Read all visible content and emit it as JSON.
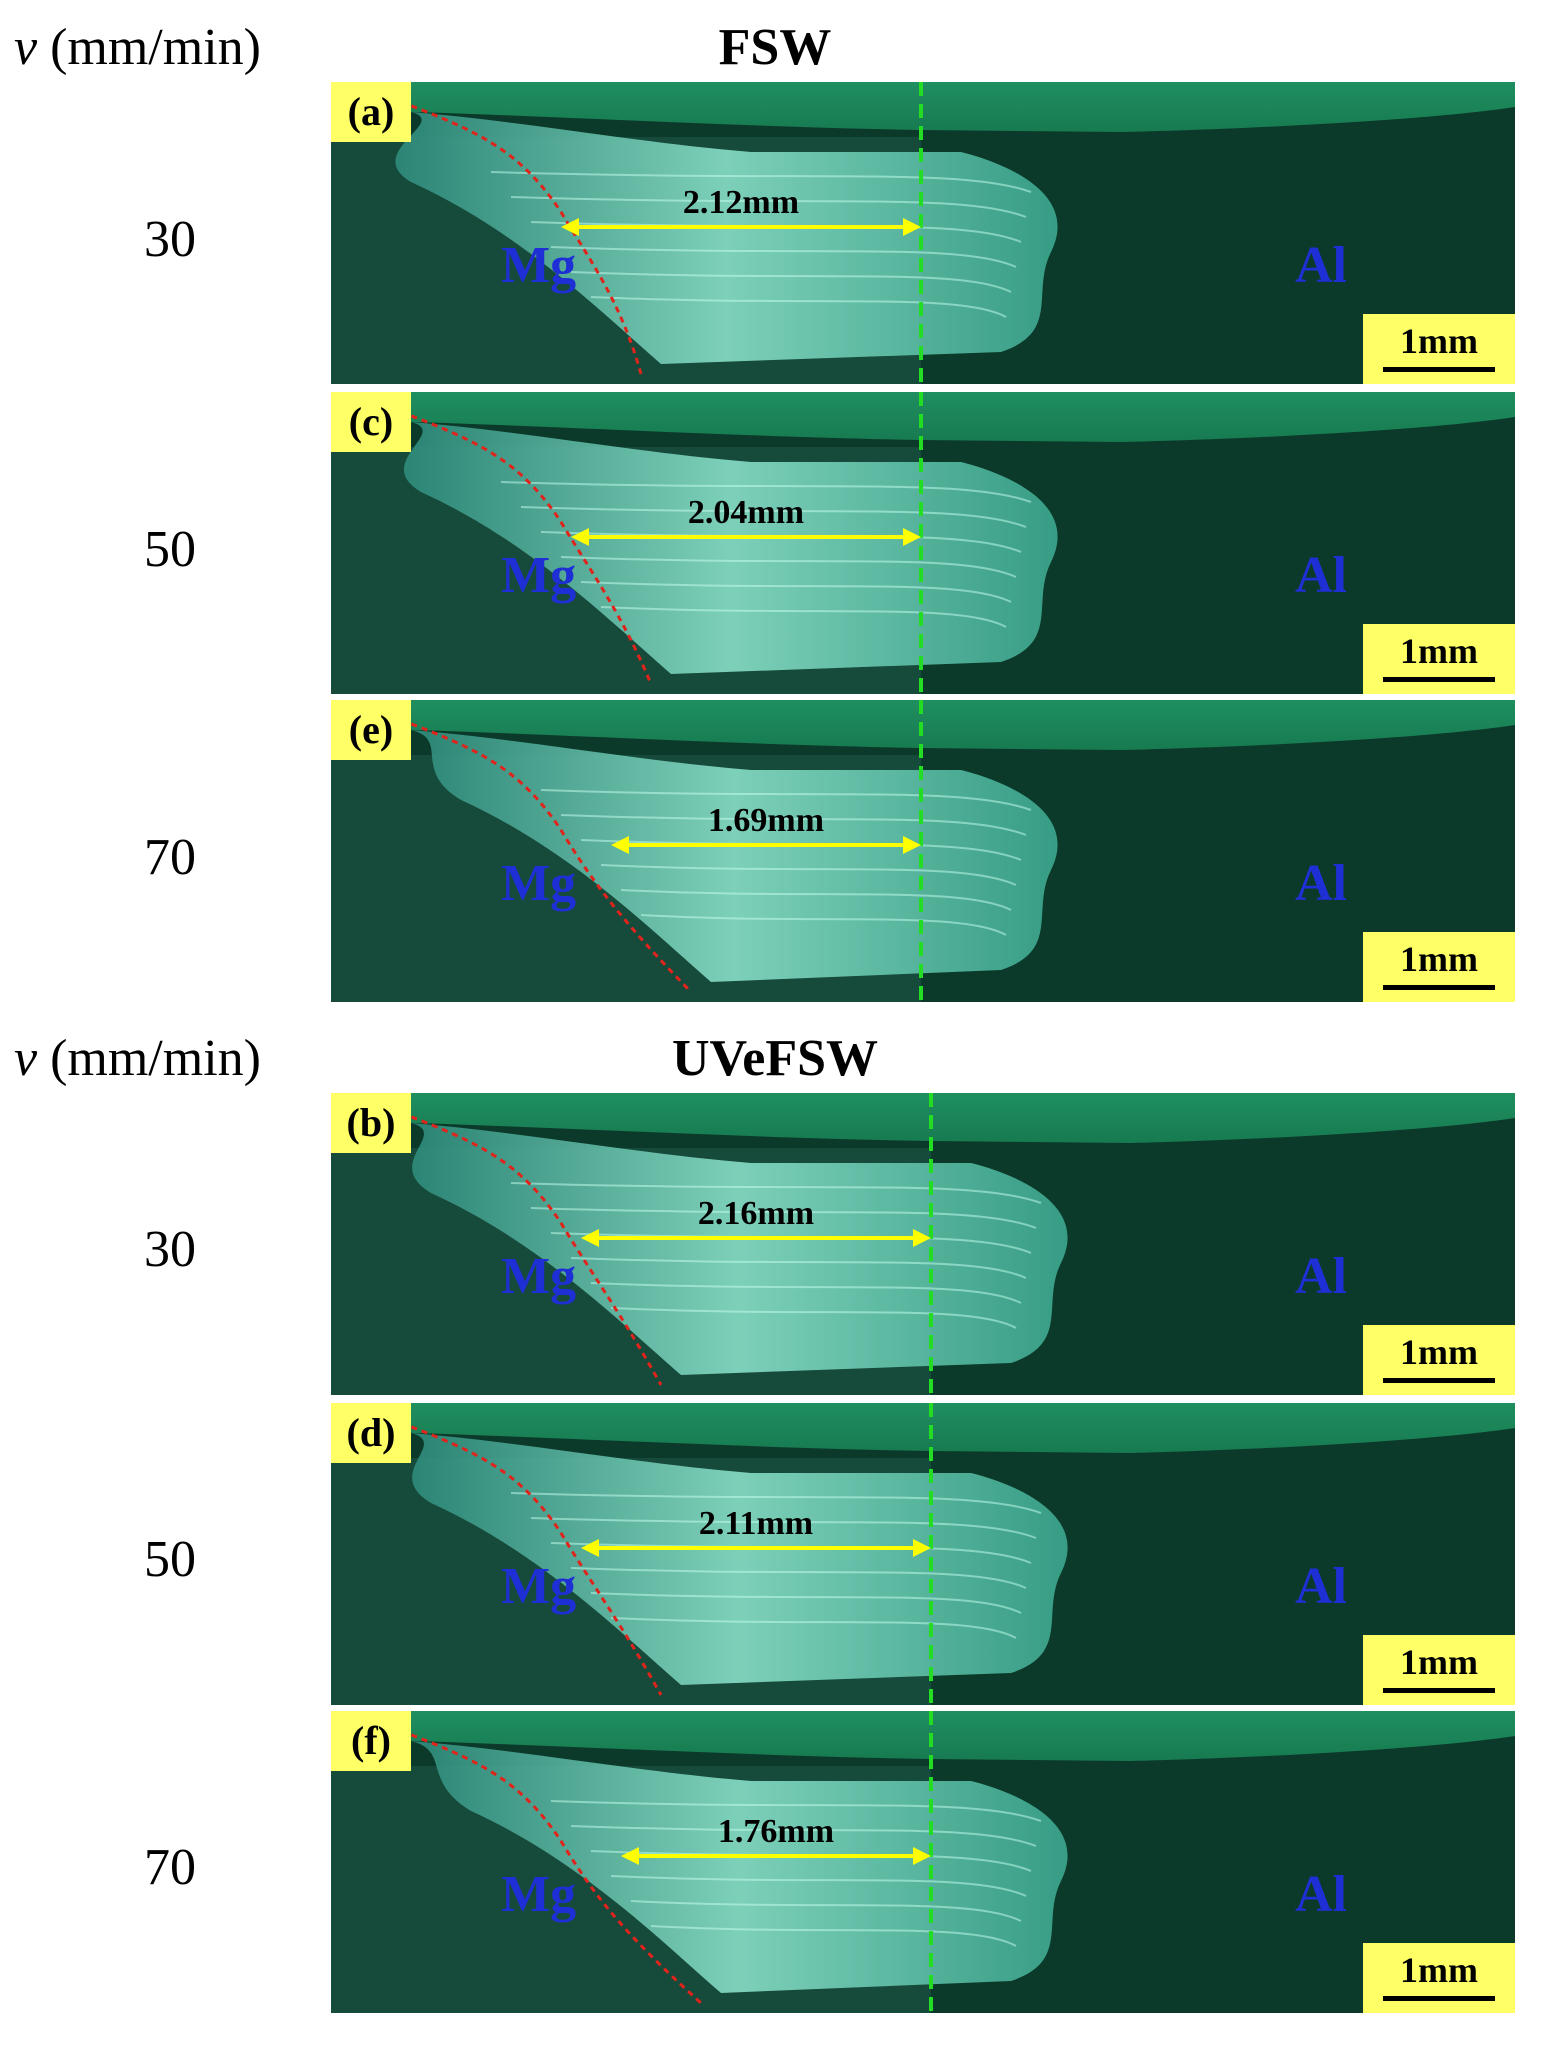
{
  "sections": [
    {
      "axis_label_var": "v",
      "axis_label_unit": "(mm/min)",
      "title": "FSW"
    },
    {
      "axis_label_var": "v",
      "axis_label_unit": "(mm/min)",
      "title": "UVeFSW"
    }
  ],
  "panels": [
    {
      "tag": "(a)",
      "speed": "30",
      "distance": "2.12mm",
      "left_material": "Mg",
      "right_material": "Al",
      "scale": "1mm"
    },
    {
      "tag": "(c)",
      "speed": "50",
      "distance": "2.04mm",
      "left_material": "Mg",
      "right_material": "Al",
      "scale": "1mm"
    },
    {
      "tag": "(e)",
      "speed": "70",
      "distance": "1.69mm",
      "left_material": "Mg",
      "right_material": "Al",
      "scale": "1mm"
    },
    {
      "tag": "(b)",
      "speed": "30",
      "distance": "2.16mm",
      "left_material": "Mg",
      "right_material": "Al",
      "scale": "1mm"
    },
    {
      "tag": "(d)",
      "speed": "50",
      "distance": "2.11mm",
      "left_material": "Mg",
      "right_material": "Al",
      "scale": "1mm"
    },
    {
      "tag": "(f)",
      "speed": "70",
      "distance": "1.76mm",
      "left_material": "Mg",
      "right_material": "Al",
      "scale": "1mm"
    }
  ],
  "colors": {
    "background_dark": "#0b3a2a",
    "weld_light": "#8fe7cf",
    "top_band": "#1f8f60",
    "tag_bg": "#ffff66",
    "boundary_red": "#e0241b",
    "centerline_green": "#22dd22",
    "arrow_yellow": "#ffff00",
    "material_blue": "#1f2fd6"
  }
}
